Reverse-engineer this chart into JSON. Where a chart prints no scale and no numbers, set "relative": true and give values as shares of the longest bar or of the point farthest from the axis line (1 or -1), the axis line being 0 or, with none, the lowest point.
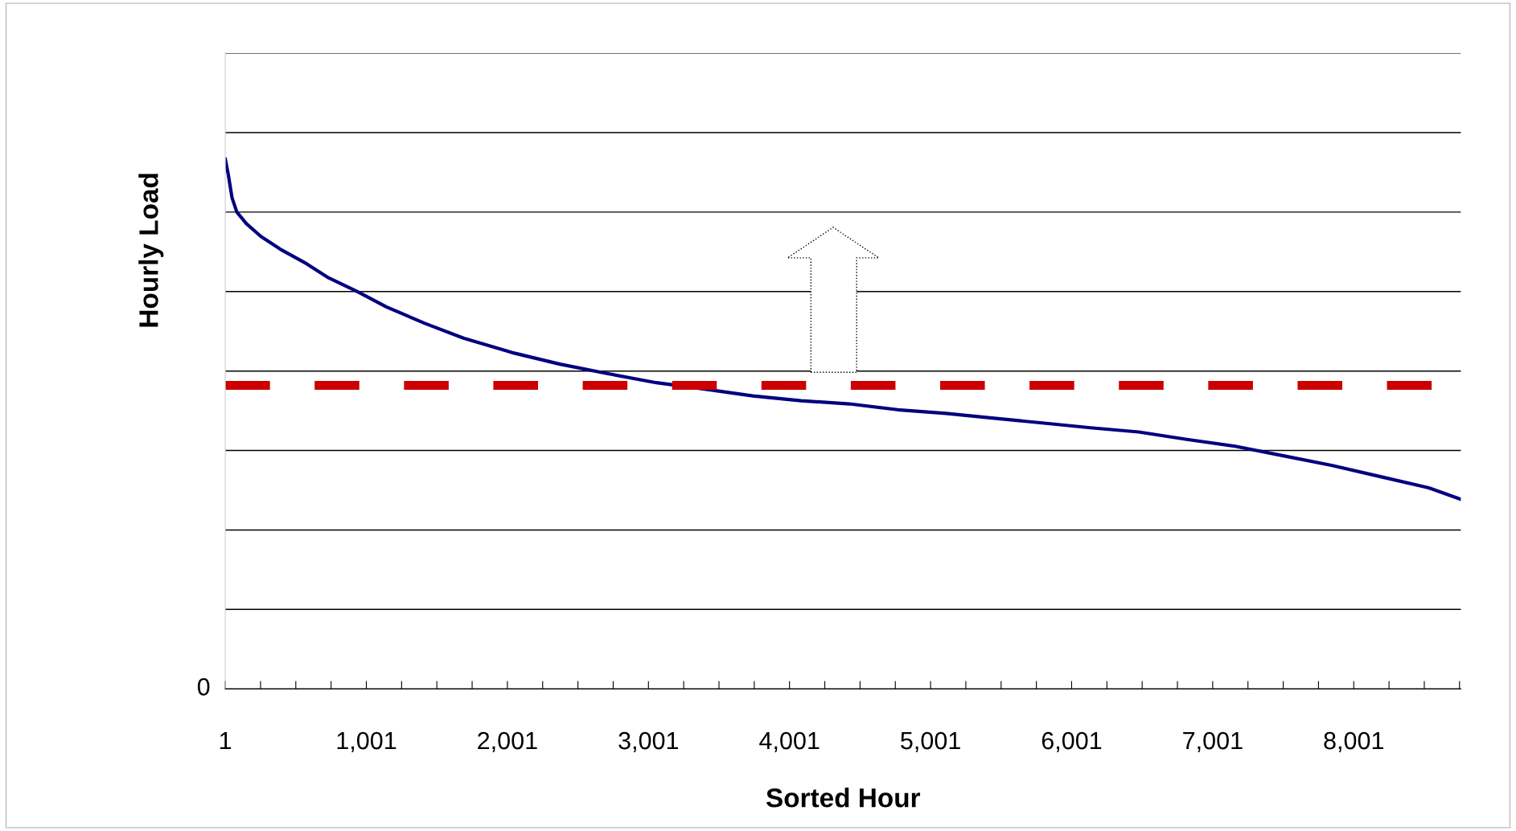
{
  "chart_data": {
    "type": "line",
    "relative": true,
    "xlabel": "Sorted Hour",
    "ylabel": "Hourly Load",
    "xlim": [
      1,
      8760
    ],
    "xticks": [
      {
        "value": 1,
        "label": "1"
      },
      {
        "value": 251,
        "label": null
      },
      {
        "value": 501,
        "label": null
      },
      {
        "value": 751,
        "label": null
      },
      {
        "value": 1001,
        "label": "1,001"
      },
      {
        "value": 1251,
        "label": null
      },
      {
        "value": 1501,
        "label": null
      },
      {
        "value": 1751,
        "label": null
      },
      {
        "value": 2001,
        "label": "2,001"
      },
      {
        "value": 2251,
        "label": null
      },
      {
        "value": 2501,
        "label": null
      },
      {
        "value": 2751,
        "label": null
      },
      {
        "value": 3001,
        "label": "3,001"
      },
      {
        "value": 3251,
        "label": null
      },
      {
        "value": 3501,
        "label": null
      },
      {
        "value": 3751,
        "label": null
      },
      {
        "value": 4001,
        "label": "4,001"
      },
      {
        "value": 4251,
        "label": null
      },
      {
        "value": 4501,
        "label": null
      },
      {
        "value": 4751,
        "label": null
      },
      {
        "value": 5001,
        "label": "5,001"
      },
      {
        "value": 5251,
        "label": null
      },
      {
        "value": 5501,
        "label": null
      },
      {
        "value": 5751,
        "label": null
      },
      {
        "value": 6001,
        "label": "6,001"
      },
      {
        "value": 6251,
        "label": null
      },
      {
        "value": 6501,
        "label": null
      },
      {
        "value": 6751,
        "label": null
      },
      {
        "value": 7001,
        "label": "7,001"
      },
      {
        "value": 7251,
        "label": null
      },
      {
        "value": 7501,
        "label": null
      },
      {
        "value": 7751,
        "label": null
      },
      {
        "value": 8001,
        "label": "8,001"
      },
      {
        "value": 8251,
        "label": null
      },
      {
        "value": 8501,
        "label": null
      },
      {
        "value": 8751,
        "label": null
      }
    ],
    "annotations": [
      "0"
    ],
    "grid": "y",
    "line_style": "solid",
    "series": [
      {
        "color": "#000080",
        "x": [
          1,
          21,
          49,
          83,
          151,
          254,
          391,
          562,
          733,
          938,
          1143,
          1416,
          1690,
          2032,
          2374,
          2715,
          3057,
          3399,
          3741,
          4083,
          4425,
          4767,
          5109,
          5451,
          5792,
          6134,
          6476,
          6818,
          7160,
          7502,
          7843,
          8185,
          8527,
          8760
        ],
        "values": [
          1.0,
          0.973,
          0.927,
          0.9,
          0.878,
          0.854,
          0.83,
          0.805,
          0.776,
          0.75,
          0.721,
          0.69,
          0.662,
          0.635,
          0.613,
          0.595,
          0.578,
          0.566,
          0.553,
          0.544,
          0.538,
          0.527,
          0.52,
          0.511,
          0.502,
          0.493,
          0.485,
          0.471,
          0.458,
          0.44,
          0.422,
          0.401,
          0.38,
          0.358
        ]
      }
    ],
    "ref_lines": [
      {
        "axis": "y",
        "value": 0.573,
        "label": null,
        "color": "#cc0000",
        "line_style": "dashed"
      }
    ]
  }
}
